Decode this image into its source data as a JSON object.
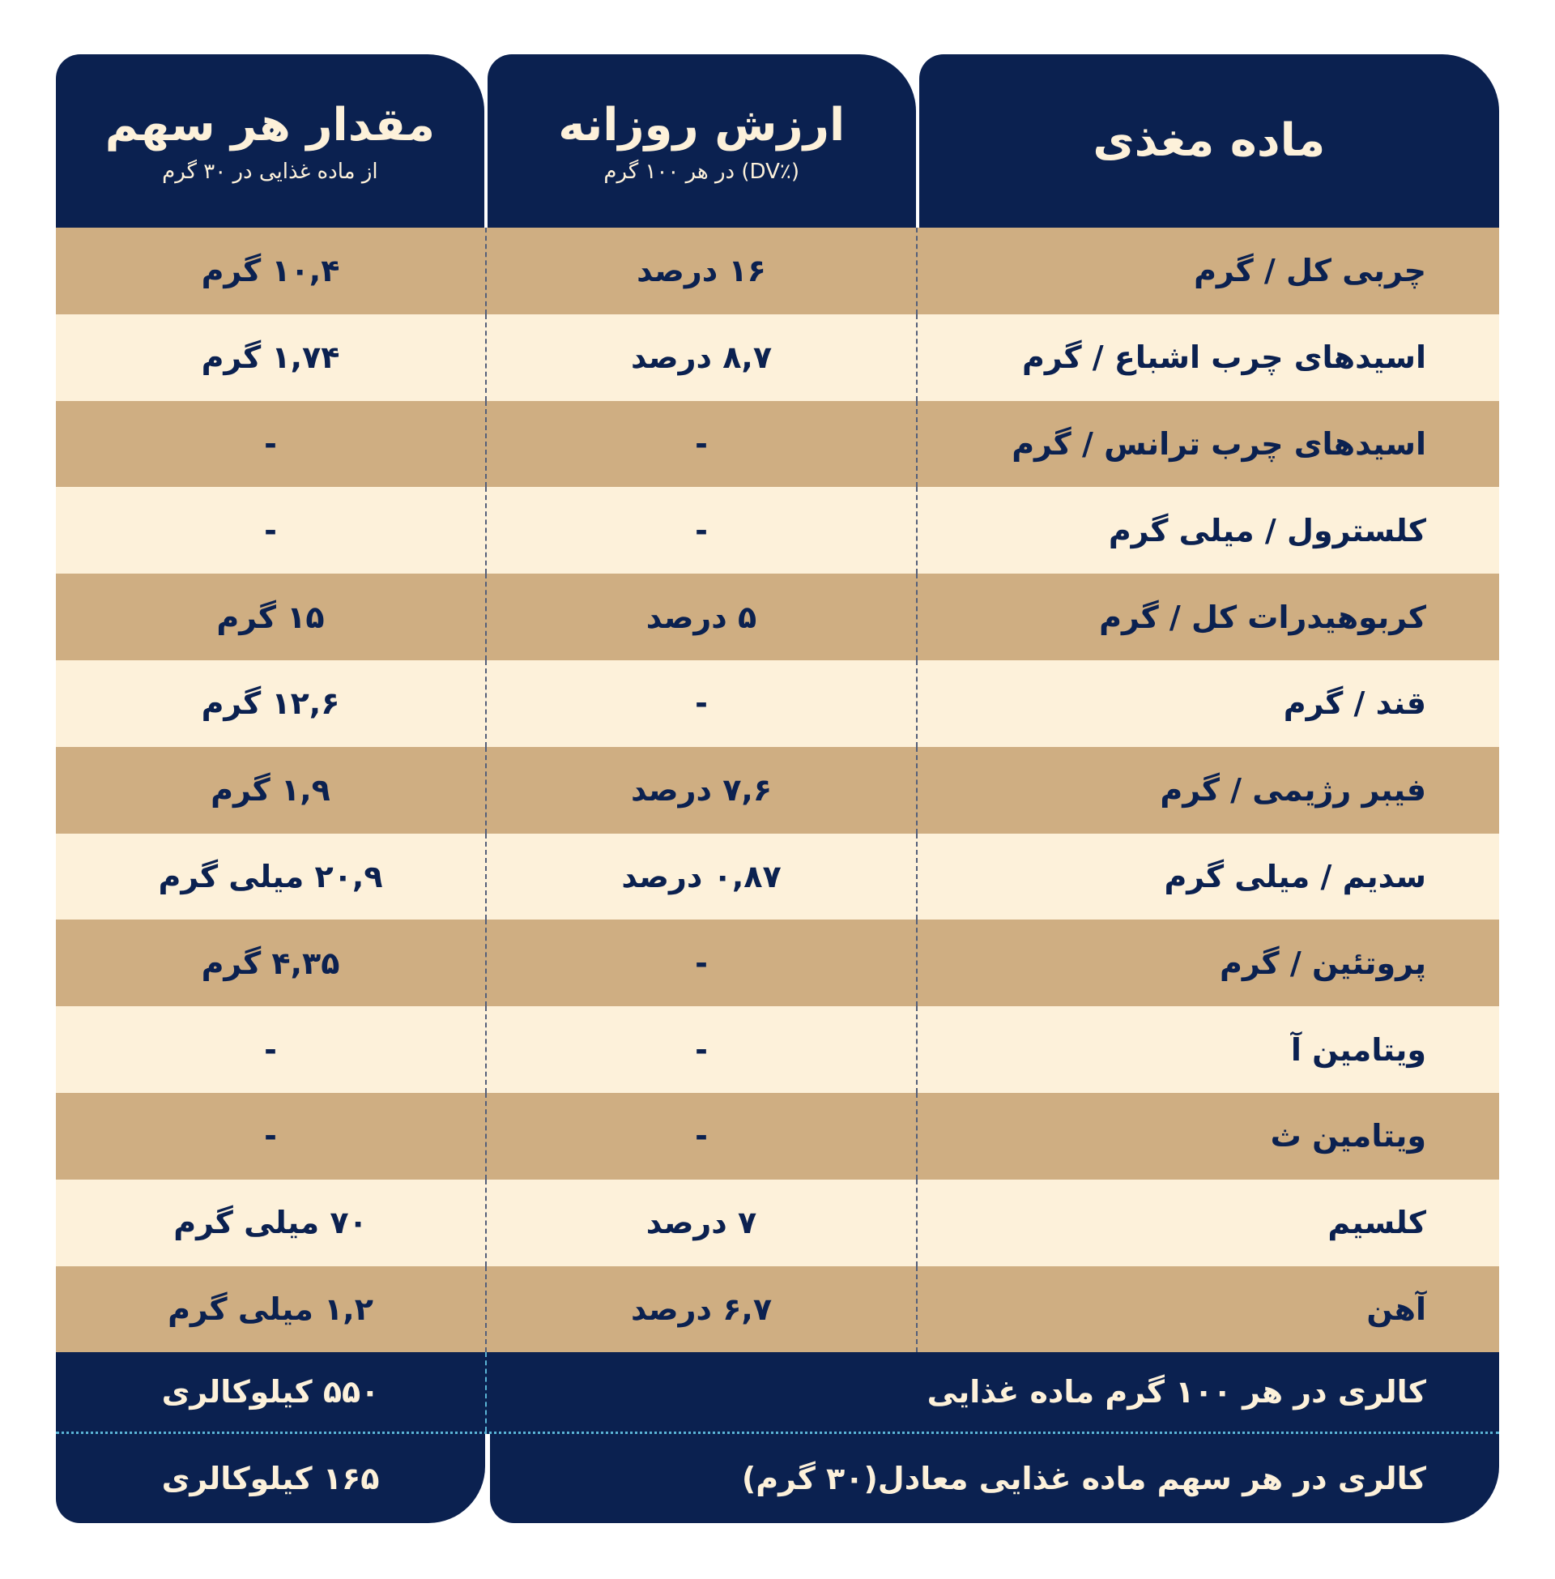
{
  "header": {
    "nutrient": {
      "title": "ماده مغذی"
    },
    "daily_value": {
      "title": "ارزش روزانه",
      "subtitle": "(٪DV) در هر ۱۰۰ گرم"
    },
    "serving": {
      "title": "مقدار هر سهم",
      "subtitle": "از ماده غذایی در ۳۰ گرم"
    }
  },
  "rows": [
    {
      "nutrient": "چربی کل / گرم",
      "dv": "۱۶ درصد",
      "amount": "۱۰,۴ گرم"
    },
    {
      "nutrient": "اسیدهای چرب اشباع / گرم",
      "dv": "۸,۷ درصد",
      "amount": "۱,۷۴ گرم"
    },
    {
      "nutrient": "اسیدهای چرب ترانس / گرم",
      "dv": "-",
      "amount": "-"
    },
    {
      "nutrient": "کلسترول / میلی گرم",
      "dv": "-",
      "amount": "-"
    },
    {
      "nutrient": "کربوهیدرات کل / گرم",
      "dv": "۵ درصد",
      "amount": "۱۵ گرم"
    },
    {
      "nutrient": "قند / گرم",
      "dv": "-",
      "amount": "۱۲,۶ گرم"
    },
    {
      "nutrient": "فیبر رژیمی / گرم",
      "dv": "۷,۶ درصد",
      "amount": "۱,۹ گرم"
    },
    {
      "nutrient": "سدیم / میلی گرم",
      "dv": "۰,۸۷ درصد",
      "amount": "۲۰,۹ میلی گرم"
    },
    {
      "nutrient": "پروتئین / گرم",
      "dv": "-",
      "amount": "۴,۳۵ گرم"
    },
    {
      "nutrient": "ویتامین آ",
      "dv": "-",
      "amount": "-"
    },
    {
      "nutrient": "ویتامین ث",
      "dv": "-",
      "amount": "-"
    },
    {
      "nutrient": "کلسیم",
      "dv": "۷ درصد",
      "amount": "۷۰ میلی گرم"
    },
    {
      "nutrient": "آهن",
      "dv": "۶,۷ درصد",
      "amount": "۱,۲ میلی گرم"
    }
  ],
  "footer": {
    "per100_label": "کالری در هر ۱۰۰ گرم ماده غذایی",
    "per100_value": "۵۵۰ کیلوکالری",
    "serving_label": "کالری در هر سهم ماده غذایی معادل(۳۰ گرم)",
    "serving_value": "۱۶۵ کیلوکالری"
  },
  "colors": {
    "navy": "#0b2150",
    "tan": "#cfae82",
    "cream": "#fdf1da",
    "divider": "#5ab4d6"
  }
}
